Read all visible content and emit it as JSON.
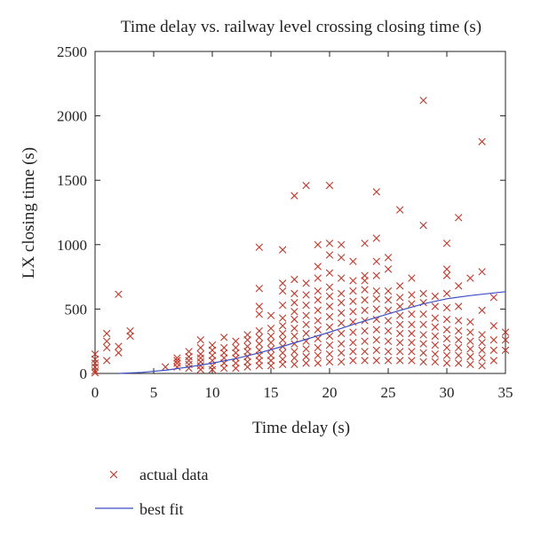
{
  "chart_data": {
    "type": "scatter",
    "title": "Time delay vs. railway level crossing closing time (s)",
    "xlabel": "Time delay (s)",
    "ylabel": "LX closing time (s)",
    "xlim": [
      0,
      35
    ],
    "ylim": [
      0,
      2500
    ],
    "xticks": [
      "0",
      "5",
      "10",
      "15",
      "20",
      "25",
      "30",
      "35"
    ],
    "yticks": [
      "0",
      "500",
      "1000",
      "1500",
      "2000",
      "2500"
    ],
    "grid": false,
    "legend_position": "bottom-left",
    "colors": {
      "actual": "#c0392b",
      "fit": "#3b4fc4",
      "axis": "#222222"
    },
    "series": [
      {
        "name": "actual data",
        "marker": "x",
        "points": [
          [
            0,
            20
          ],
          [
            0,
            50
          ],
          [
            0,
            80
          ],
          [
            0,
            110
          ],
          [
            0,
            150
          ],
          [
            0,
            5
          ],
          [
            1,
            100
          ],
          [
            1,
            200
          ],
          [
            1,
            250
          ],
          [
            1,
            310
          ],
          [
            2,
            160
          ],
          [
            2,
            210
          ],
          [
            2,
            615
          ],
          [
            3,
            290
          ],
          [
            3,
            330
          ],
          [
            6,
            50
          ],
          [
            7,
            50
          ],
          [
            7,
            80
          ],
          [
            7,
            100
          ],
          [
            7,
            120
          ],
          [
            8,
            40
          ],
          [
            8,
            70
          ],
          [
            8,
            100
          ],
          [
            8,
            130
          ],
          [
            8,
            170
          ],
          [
            9,
            30
          ],
          [
            9,
            60
          ],
          [
            9,
            90
          ],
          [
            9,
            120
          ],
          [
            9,
            150
          ],
          [
            9,
            200
          ],
          [
            9,
            260
          ],
          [
            10,
            30
          ],
          [
            10,
            60
          ],
          [
            10,
            100
          ],
          [
            10,
            140
          ],
          [
            10,
            180
          ],
          [
            10,
            220
          ],
          [
            11,
            40
          ],
          [
            11,
            80
          ],
          [
            11,
            120
          ],
          [
            11,
            160
          ],
          [
            11,
            200
          ],
          [
            11,
            280
          ],
          [
            12,
            40
          ],
          [
            12,
            80
          ],
          [
            12,
            120
          ],
          [
            12,
            160
          ],
          [
            12,
            200
          ],
          [
            12,
            250
          ],
          [
            13,
            50
          ],
          [
            13,
            90
          ],
          [
            13,
            130
          ],
          [
            13,
            170
          ],
          [
            13,
            210
          ],
          [
            13,
            260
          ],
          [
            13,
            300
          ],
          [
            14,
            60
          ],
          [
            14,
            100
          ],
          [
            14,
            140
          ],
          [
            14,
            180
          ],
          [
            14,
            230
          ],
          [
            14,
            280
          ],
          [
            14,
            330
          ],
          [
            14,
            460
          ],
          [
            14,
            520
          ],
          [
            14,
            660
          ],
          [
            14,
            980
          ],
          [
            15,
            60
          ],
          [
            15,
            100
          ],
          [
            15,
            140
          ],
          [
            15,
            190
          ],
          [
            15,
            240
          ],
          [
            15,
            290
          ],
          [
            15,
            350
          ],
          [
            15,
            450
          ],
          [
            16,
            70
          ],
          [
            16,
            110
          ],
          [
            16,
            160
          ],
          [
            16,
            210
          ],
          [
            16,
            260
          ],
          [
            16,
            310
          ],
          [
            16,
            370
          ],
          [
            16,
            430
          ],
          [
            16,
            530
          ],
          [
            16,
            640
          ],
          [
            16,
            700
          ],
          [
            16,
            960
          ],
          [
            17,
            70
          ],
          [
            17,
            120
          ],
          [
            17,
            170
          ],
          [
            17,
            230
          ],
          [
            17,
            290
          ],
          [
            17,
            350
          ],
          [
            17,
            420
          ],
          [
            17,
            480
          ],
          [
            17,
            550
          ],
          [
            17,
            620
          ],
          [
            17,
            730
          ],
          [
            17,
            1380
          ],
          [
            18,
            80
          ],
          [
            18,
            130
          ],
          [
            18,
            190
          ],
          [
            18,
            250
          ],
          [
            18,
            310
          ],
          [
            18,
            380
          ],
          [
            18,
            450
          ],
          [
            18,
            530
          ],
          [
            18,
            610
          ],
          [
            18,
            700
          ],
          [
            18,
            1460
          ],
          [
            19,
            80
          ],
          [
            19,
            140
          ],
          [
            19,
            200
          ],
          [
            19,
            270
          ],
          [
            19,
            340
          ],
          [
            19,
            410
          ],
          [
            19,
            490
          ],
          [
            19,
            570
          ],
          [
            19,
            640
          ],
          [
            19,
            740
          ],
          [
            19,
            830
          ],
          [
            19,
            1000
          ],
          [
            20,
            90
          ],
          [
            20,
            150
          ],
          [
            20,
            220
          ],
          [
            20,
            290
          ],
          [
            20,
            360
          ],
          [
            20,
            440
          ],
          [
            20,
            520
          ],
          [
            20,
            600
          ],
          [
            20,
            670
          ],
          [
            20,
            780
          ],
          [
            20,
            920
          ],
          [
            20,
            1010
          ],
          [
            20,
            1460
          ],
          [
            21,
            90
          ],
          [
            21,
            160
          ],
          [
            21,
            230
          ],
          [
            21,
            310
          ],
          [
            21,
            390
          ],
          [
            21,
            470
          ],
          [
            21,
            550
          ],
          [
            21,
            620
          ],
          [
            21,
            740
          ],
          [
            21,
            900
          ],
          [
            21,
            1000
          ],
          [
            22,
            100
          ],
          [
            22,
            170
          ],
          [
            22,
            240
          ],
          [
            22,
            320
          ],
          [
            22,
            400
          ],
          [
            22,
            480
          ],
          [
            22,
            560
          ],
          [
            22,
            640
          ],
          [
            22,
            720
          ],
          [
            22,
            870
          ],
          [
            23,
            100
          ],
          [
            23,
            170
          ],
          [
            23,
            250
          ],
          [
            23,
            330
          ],
          [
            23,
            410
          ],
          [
            23,
            490
          ],
          [
            23,
            570
          ],
          [
            23,
            650
          ],
          [
            23,
            720
          ],
          [
            23,
            760
          ],
          [
            23,
            1010
          ],
          [
            24,
            100
          ],
          [
            24,
            180
          ],
          [
            24,
            260
          ],
          [
            24,
            340
          ],
          [
            24,
            420
          ],
          [
            24,
            500
          ],
          [
            24,
            580
          ],
          [
            24,
            640
          ],
          [
            24,
            760
          ],
          [
            24,
            870
          ],
          [
            24,
            1050
          ],
          [
            24,
            1410
          ],
          [
            25,
            100
          ],
          [
            25,
            170
          ],
          [
            25,
            250
          ],
          [
            25,
            330
          ],
          [
            25,
            410
          ],
          [
            25,
            490
          ],
          [
            25,
            570
          ],
          [
            25,
            640
          ],
          [
            25,
            810
          ],
          [
            25,
            900
          ],
          [
            26,
            100
          ],
          [
            26,
            170
          ],
          [
            26,
            240
          ],
          [
            26,
            310
          ],
          [
            26,
            380
          ],
          [
            26,
            450
          ],
          [
            26,
            520
          ],
          [
            26,
            590
          ],
          [
            26,
            680
          ],
          [
            26,
            1270
          ],
          [
            27,
            100
          ],
          [
            27,
            170
          ],
          [
            27,
            240
          ],
          [
            27,
            310
          ],
          [
            27,
            380
          ],
          [
            27,
            460
          ],
          [
            27,
            540
          ],
          [
            27,
            610
          ],
          [
            27,
            740
          ],
          [
            28,
            90
          ],
          [
            28,
            160
          ],
          [
            28,
            230
          ],
          [
            28,
            300
          ],
          [
            28,
            380
          ],
          [
            28,
            460
          ],
          [
            28,
            550
          ],
          [
            28,
            620
          ],
          [
            28,
            1150
          ],
          [
            28,
            2120
          ],
          [
            29,
            90
          ],
          [
            29,
            150
          ],
          [
            29,
            220
          ],
          [
            29,
            290
          ],
          [
            29,
            360
          ],
          [
            29,
            430
          ],
          [
            29,
            520
          ],
          [
            29,
            600
          ],
          [
            30,
            80
          ],
          [
            30,
            140
          ],
          [
            30,
            200
          ],
          [
            30,
            270
          ],
          [
            30,
            340
          ],
          [
            30,
            420
          ],
          [
            30,
            510
          ],
          [
            30,
            620
          ],
          [
            30,
            760
          ],
          [
            30,
            810
          ],
          [
            30,
            1010
          ],
          [
            31,
            80
          ],
          [
            31,
            140
          ],
          [
            31,
            200
          ],
          [
            31,
            260
          ],
          [
            31,
            330
          ],
          [
            31,
            410
          ],
          [
            31,
            520
          ],
          [
            31,
            680
          ],
          [
            31,
            1210
          ],
          [
            32,
            70
          ],
          [
            32,
            130
          ],
          [
            32,
            190
          ],
          [
            32,
            250
          ],
          [
            32,
            320
          ],
          [
            32,
            400
          ],
          [
            32,
            740
          ],
          [
            33,
            60
          ],
          [
            33,
            120
          ],
          [
            33,
            180
          ],
          [
            33,
            240
          ],
          [
            33,
            300
          ],
          [
            33,
            490
          ],
          [
            33,
            790
          ],
          [
            33,
            1800
          ],
          [
            34,
            100
          ],
          [
            34,
            180
          ],
          [
            34,
            260
          ],
          [
            34,
            370
          ],
          [
            34,
            590
          ],
          [
            35,
            180
          ],
          [
            35,
            260
          ],
          [
            35,
            320
          ]
        ]
      },
      {
        "name": "best fit",
        "type": "line",
        "points": [
          [
            2,
            0
          ],
          [
            4,
            8
          ],
          [
            6,
            25
          ],
          [
            8,
            50
          ],
          [
            10,
            80
          ],
          [
            12,
            115
          ],
          [
            14,
            160
          ],
          [
            16,
            210
          ],
          [
            18,
            265
          ],
          [
            20,
            320
          ],
          [
            22,
            380
          ],
          [
            24,
            435
          ],
          [
            26,
            490
          ],
          [
            28,
            540
          ],
          [
            30,
            580
          ],
          [
            32,
            605
          ],
          [
            35,
            635
          ]
        ]
      }
    ]
  }
}
